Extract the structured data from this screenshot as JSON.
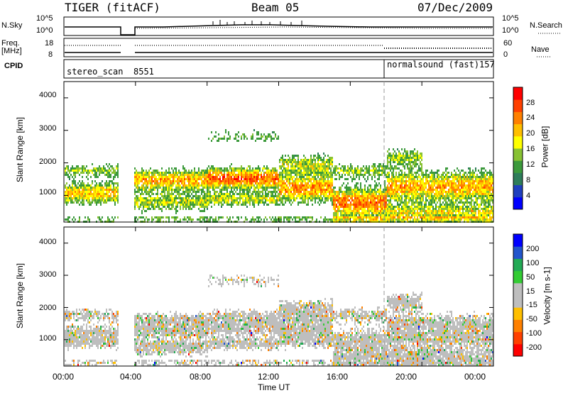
{
  "header": {
    "radar": "TIGER (fitACF)",
    "beam": "Beam 05",
    "date": "07/Dec/2009"
  },
  "summary_panels": {
    "nsky": {
      "label": "N.Sky",
      "ticks": [
        "10^5",
        "10^0"
      ]
    },
    "nsearch": {
      "label": "N.Search",
      "ticks": [
        "10^5",
        "10^0"
      ]
    },
    "freq": {
      "label_line1": "Freq.",
      "label_line2": "[MHz]",
      "ticks": [
        "18",
        "8"
      ]
    },
    "nave": {
      "label": "Nave",
      "ticks": [
        "60",
        "0"
      ]
    },
    "cpid": {
      "label": "CPID",
      "segments": [
        {
          "name": "stereo_scan",
          "id": "8551",
          "start_hour": 0,
          "end_hour": 18
        },
        {
          "name": "normalsound (fast)",
          "id": "157",
          "start_hour": 18,
          "end_hour": 24
        }
      ]
    }
  },
  "chart_data": [
    {
      "type": "heatmap",
      "name": "power",
      "xlabel": "",
      "ylabel": "Slant Range [km]",
      "xlim": [
        0,
        24
      ],
      "ylim": [
        180,
        4500
      ],
      "yticks": [
        "4000",
        "3000",
        "2000",
        "1000"
      ],
      "ytick_values": [
        4000,
        3000,
        2000,
        1000
      ],
      "colorbar": {
        "label": "Power [dB]",
        "ticks": [
          "28",
          "24",
          "20",
          "16",
          "12",
          "8",
          "4"
        ],
        "min": 0,
        "max": 32,
        "colors": [
          "#0000ff",
          "#1f3fbf",
          "#2e7d5a",
          "#3c9a3c",
          "#88c233",
          "#ffff00",
          "#ffbf00",
          "#ff8000",
          "#ff4000",
          "#ff0000"
        ]
      },
      "data_gap_hours": [
        3.05,
        3.9
      ],
      "mode_change_hour": 18
    },
    {
      "type": "heatmap",
      "name": "velocity",
      "xlabel": "Time UT",
      "ylabel": "Slant Range [km]",
      "xlim": [
        0,
        24
      ],
      "ylim": [
        180,
        4500
      ],
      "xticks": [
        "00:00",
        "04:00",
        "08:00",
        "12:00",
        "16:00",
        "20:00",
        "00:00"
      ],
      "xtick_values": [
        0,
        4,
        8,
        12,
        16,
        20,
        24
      ],
      "yticks": [
        "4000",
        "3000",
        "2000",
        "1000"
      ],
      "ytick_values": [
        4000,
        3000,
        2000,
        1000
      ],
      "colorbar": {
        "label": "Velocity [m s-1]",
        "ticks": [
          "200",
          "100",
          "50",
          "15",
          "-15",
          "-50",
          "-100",
          "-200"
        ],
        "min": -250,
        "max": 250,
        "colors": [
          "#ff0000",
          "#ff4000",
          "#ff8000",
          "#ffbf00",
          "#bebebe",
          "#bebebe",
          "#33cc33",
          "#22aa55",
          "#2255cc",
          "#0000ff"
        ]
      },
      "data_gap_hours": [
        3.05,
        3.9
      ],
      "mode_change_hour": 18
    }
  ]
}
